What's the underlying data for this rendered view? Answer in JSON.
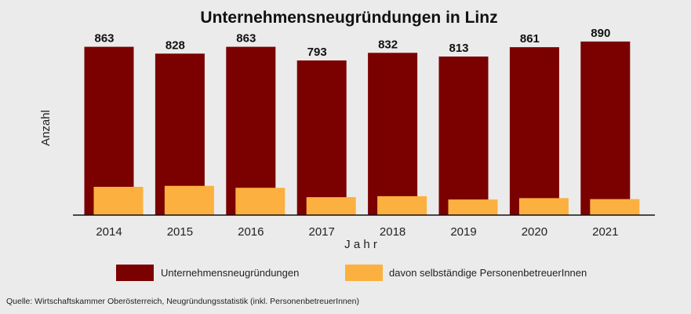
{
  "chart_data": {
    "type": "bar",
    "title": "Unternehmensneugründungen in Linz",
    "xlabel": "J a h r",
    "ylabel": "Anzahl",
    "categories": [
      "2014",
      "2015",
      "2016",
      "2017",
      "2018",
      "2019",
      "2020",
      "2021"
    ],
    "ylim": [
      0,
      950
    ],
    "grid": false,
    "legend_position": "bottom",
    "series": [
      {
        "name": "Unternehmensneugründungen",
        "color": "#7b0000",
        "values": [
          863,
          828,
          863,
          793,
          832,
          813,
          861,
          890
        ],
        "labels": [
          "863",
          "828",
          "863",
          "793",
          "832",
          "813",
          "861",
          "890"
        ]
      },
      {
        "name": "davon selbständige PersonenbetreuerInnen",
        "color": "#fbb040",
        "values": [
          145,
          150,
          140,
          92,
          97,
          80,
          87,
          82
        ]
      }
    ],
    "source": "Quelle: Wirtschaftskammer Oberösterreich, Neugründungsstatistik (inkl. PersonenbetreuerInnen)"
  }
}
